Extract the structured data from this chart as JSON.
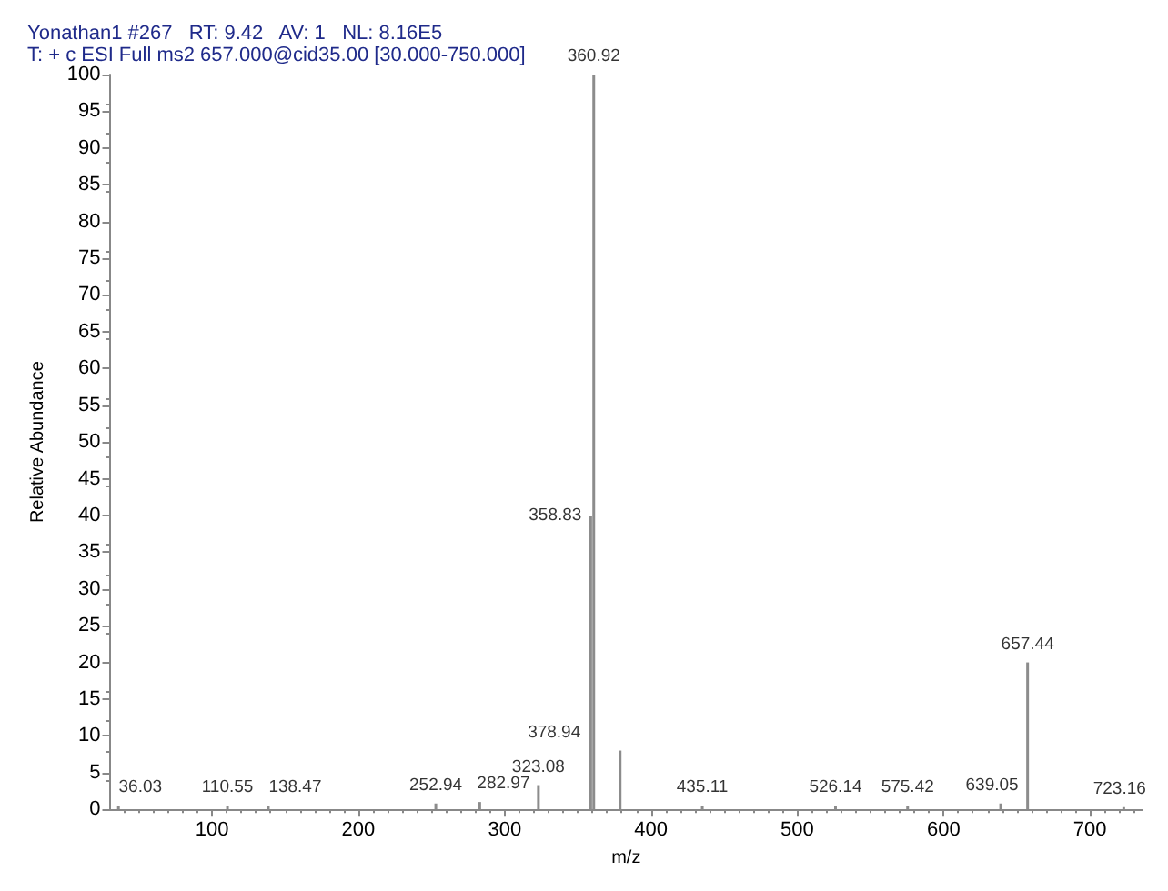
{
  "chart_data": {
    "type": "bar",
    "title": "Yonathan1 #267   RT: 9.42   AV: 1   NL: 8.16E5",
    "subtitle": "T: + c ESI Full ms2 657.000@cid35.00 [30.000-750.000]",
    "xlabel": "m/z",
    "ylabel": "Relative Abundance",
    "x": [
      36.03,
      110.55,
      138.47,
      252.94,
      282.97,
      323.08,
      358.83,
      360.92,
      378.94,
      435.11,
      526.14,
      575.42,
      639.05,
      657.44,
      723.16
    ],
    "values": [
      0.5,
      0.5,
      0.5,
      0.8,
      1,
      3.3,
      40,
      100,
      8,
      0.5,
      0.5,
      0.5,
      0.8,
      20,
      0.3
    ],
    "color": "#8c8c8c",
    "xlim": [
      30,
      736
    ],
    "xticks": [
      100,
      200,
      300,
      400,
      500,
      600,
      700
    ],
    "ylim": [
      0,
      100
    ],
    "yticks": [
      0,
      5,
      10,
      15,
      20,
      25,
      30,
      35,
      40,
      45,
      50,
      55,
      60,
      65,
      70,
      75,
      80,
      85,
      90,
      95,
      100
    ],
    "grid": false,
    "annotations": [
      {
        "text": "36.03",
        "x": 36.03,
        "y": 0.5
      },
      {
        "text": "110.55",
        "x": 110.55,
        "y": 0.5
      },
      {
        "text": "138.47",
        "x": 138.47,
        "y": 0.5
      },
      {
        "text": "252.94",
        "x": 252.94,
        "y": 0.8
      },
      {
        "text": "282.97",
        "x": 282.97,
        "y": 1
      },
      {
        "text": "323.08",
        "x": 323.08,
        "y": 3.3
      },
      {
        "text": "358.83",
        "x": 358.83,
        "y": 40
      },
      {
        "text": "360.92",
        "x": 360.92,
        "y": 100
      },
      {
        "text": "378.94",
        "x": 378.94,
        "y": 8
      },
      {
        "text": "435.11",
        "x": 435.11,
        "y": 0.5
      },
      {
        "text": "526.14",
        "x": 526.14,
        "y": 0.5
      },
      {
        "text": "575.42",
        "x": 575.42,
        "y": 0.5
      },
      {
        "text": "639.05",
        "x": 639.05,
        "y": 0.8
      },
      {
        "text": "657.44",
        "x": 657.44,
        "y": 20
      },
      {
        "text": "723.16",
        "x": 723.16,
        "y": 0.3
      }
    ]
  }
}
